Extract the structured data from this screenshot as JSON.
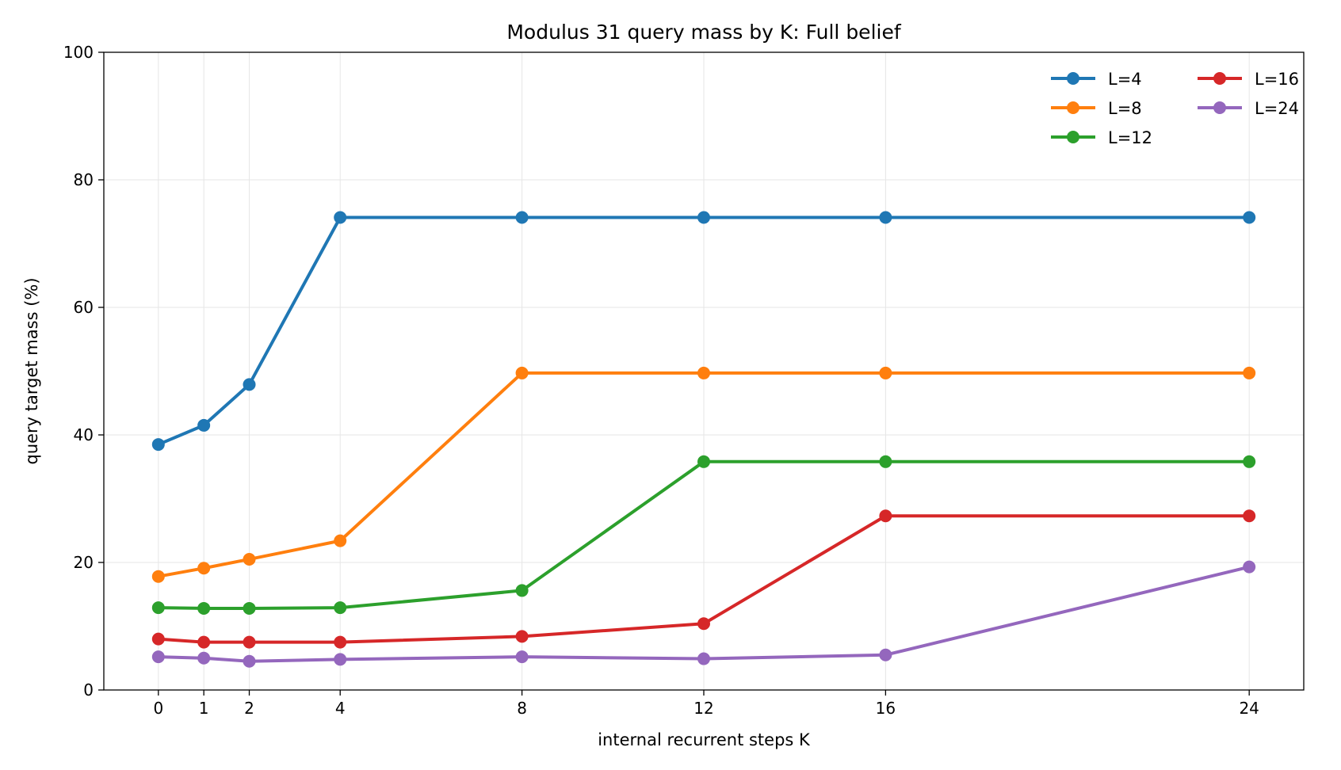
{
  "chart_data": {
    "type": "line",
    "title": "Modulus 31 query mass by K: Full belief",
    "xlabel": "internal recurrent steps K",
    "ylabel": "query target mass (%)",
    "xlim": [
      -1.2,
      25.2
    ],
    "ylim": [
      0,
      100
    ],
    "xticks": [
      0,
      1,
      2,
      4,
      8,
      12,
      16,
      24
    ],
    "yticks": [
      0,
      20,
      40,
      60,
      80,
      100
    ],
    "grid": true,
    "legend_position": "top-right",
    "legend_columns": 2,
    "x": [
      0,
      1,
      2,
      4,
      8,
      12,
      16,
      24
    ],
    "series": [
      {
        "name": "L=4",
        "color": "#1f77b4",
        "values": [
          38.5,
          41.5,
          47.9,
          74.1,
          74.1,
          74.1,
          74.1,
          74.1
        ]
      },
      {
        "name": "L=8",
        "color": "#ff7f0e",
        "values": [
          17.8,
          19.1,
          20.5,
          23.4,
          49.7,
          49.7,
          49.7,
          49.7
        ]
      },
      {
        "name": "L=12",
        "color": "#2ca02c",
        "values": [
          12.9,
          12.8,
          12.8,
          12.9,
          15.6,
          35.8,
          35.8,
          35.8
        ]
      },
      {
        "name": "L=16",
        "color": "#d62728",
        "values": [
          8.0,
          7.5,
          7.5,
          7.5,
          8.4,
          10.4,
          27.3,
          27.3
        ]
      },
      {
        "name": "L=24",
        "color": "#9467bd",
        "values": [
          5.2,
          5.0,
          4.5,
          4.8,
          5.2,
          4.9,
          5.5,
          19.3
        ]
      }
    ]
  }
}
